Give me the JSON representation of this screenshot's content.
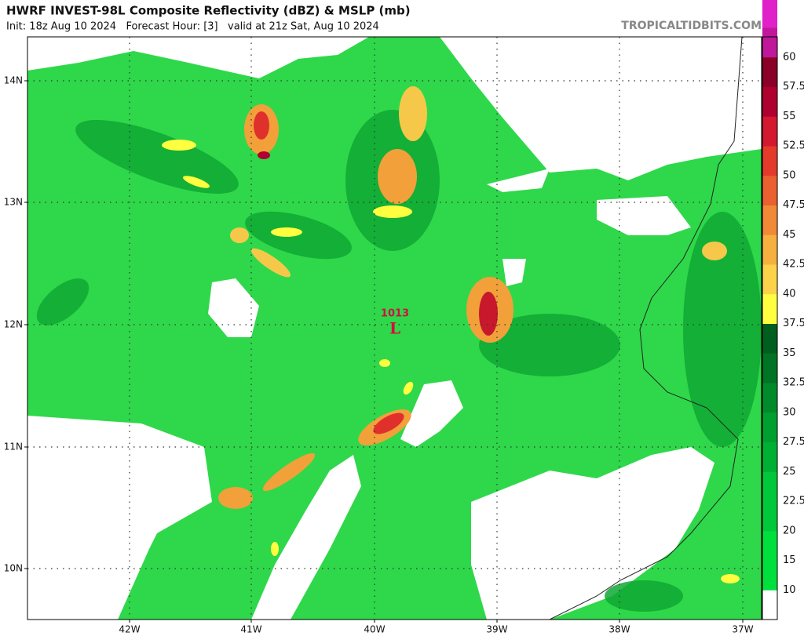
{
  "header": {
    "title": "HWRF INVEST-98L Composite Reflectivity (dBZ) & MSLP (mb)",
    "subtitle": "Init: 18z Aug 10 2024   Forecast Hour: [3]   valid at 21z Sat, Aug 10 2024",
    "source": "TROPICALTIDBITS.COM"
  },
  "map": {
    "lat_labels": [
      "14N",
      "13N",
      "12N",
      "11N",
      "10N"
    ],
    "lon_labels": [
      "42W",
      "41W",
      "40W",
      "39W",
      "38W",
      "37W"
    ],
    "low": {
      "pressure": "1013",
      "symbol": "L"
    }
  },
  "colorbar": {
    "labels": [
      "60",
      "57.5",
      "55",
      "52.5",
      "50",
      "47.5",
      "45",
      "42.5",
      "40",
      "37.5",
      "35",
      "32.5",
      "30",
      "27.5",
      "25",
      "22.5",
      "20",
      "15",
      "10"
    ]
  }
}
